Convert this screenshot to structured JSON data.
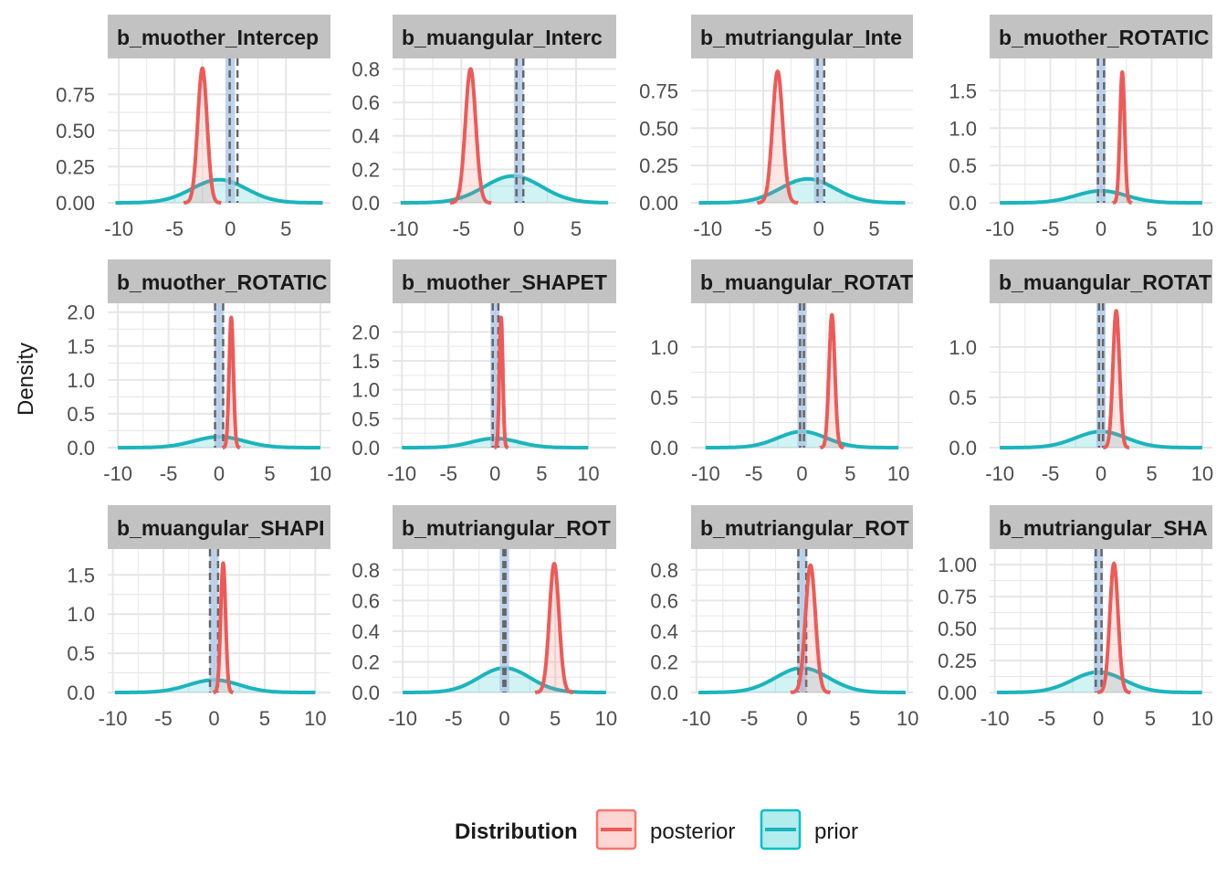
{
  "chart_data": {
    "type": "area",
    "ylabel": "Density",
    "legend": {
      "title": "Distribution",
      "position": "bottom",
      "entries": [
        {
          "name": "posterior",
          "color": "#F8766D"
        },
        {
          "name": "prior",
          "color": "#00BFC4"
        }
      ]
    },
    "colors": {
      "posterior_line": "#ED5A57",
      "posterior_fill": "#F8766D",
      "prior_line": "#1DB4BC",
      "prior_fill": "#00BFC4",
      "rope_fill": "#A9C4E6",
      "dashed_line": "#666666",
      "strip_bg": "#C2C2C2",
      "grid": "#E6E6E6"
    },
    "grid": true,
    "panels": [
      {
        "title": "b_muother_Intercep",
        "xlim": [
          -11,
          9
        ],
        "ylim": [
          0,
          0.96
        ],
        "xticks": [
          -10,
          -5,
          0,
          5
        ],
        "yticks": [
          0,
          0.25,
          0.5,
          0.75
        ],
        "ytick_labels": [
          "0.00",
          "0.25",
          "0.50",
          "0.75"
        ],
        "posterior": {
          "mean": -2.5,
          "sd": 0.42,
          "peak": 0.93
        },
        "prior": {
          "mean": -1,
          "sd": 2.45,
          "peak": 0.16
        },
        "rope": [
          -0.1,
          0.1
        ],
        "dashed": [
          -0.05,
          0.65
        ]
      },
      {
        "title": "b_muangular_Interc",
        "xlim": [
          -11,
          8.5
        ],
        "ylim": [
          0,
          0.83
        ],
        "xticks": [
          -10,
          -5,
          0,
          5
        ],
        "yticks": [
          0,
          0.2,
          0.4,
          0.6,
          0.8
        ],
        "ytick_labels": [
          "0.0",
          "0.2",
          "0.4",
          "0.6",
          "0.8"
        ],
        "posterior": {
          "mean": -4.2,
          "sd": 0.45,
          "peak": 0.8
        },
        "prior": {
          "mean": -0.5,
          "sd": 2.5,
          "peak": 0.16
        },
        "rope": [
          -0.1,
          0.1
        ],
        "dashed": [
          -0.2,
          0.4
        ]
      },
      {
        "title": "b_mutriangular_Inte",
        "xlim": [
          -11.5,
          8.5
        ],
        "ylim": [
          0,
          0.93
        ],
        "xticks": [
          -10,
          -5,
          0,
          5
        ],
        "yticks": [
          0,
          0.25,
          0.5,
          0.75
        ],
        "ytick_labels": [
          "0.00",
          "0.25",
          "0.50",
          "0.75"
        ],
        "posterior": {
          "mean": -3.7,
          "sd": 0.46,
          "peak": 0.88
        },
        "prior": {
          "mean": -1,
          "sd": 2.45,
          "peak": 0.16
        },
        "rope": [
          -0.1,
          0.1
        ],
        "dashed": [
          -0.1,
          0.5
        ]
      },
      {
        "title": "b_muother_ROTATIC",
        "xlim": [
          -11,
          11
        ],
        "ylim": [
          0,
          1.86
        ],
        "xticks": [
          -10,
          -5,
          0,
          5,
          10
        ],
        "yticks": [
          0,
          0.5,
          1.0,
          1.5
        ],
        "ytick_labels": [
          "0.0",
          "0.5",
          "1.0",
          "1.5"
        ],
        "posterior": {
          "mean": 2.1,
          "sd": 0.23,
          "peak": 1.75
        },
        "prior": {
          "mean": 0,
          "sd": 2.5,
          "peak": 0.16
        },
        "rope": [
          -0.1,
          0.1
        ],
        "dashed": [
          -0.3,
          0.3
        ]
      },
      {
        "title": "b_muother_ROTATIC",
        "xlim": [
          -11,
          11
        ],
        "ylim": [
          0,
          2.05
        ],
        "xticks": [
          -10,
          -5,
          0,
          5,
          10
        ],
        "yticks": [
          0,
          0.5,
          1.0,
          1.5,
          2.0
        ],
        "ytick_labels": [
          "0.0",
          "0.5",
          "1.0",
          "1.5",
          "2.0"
        ],
        "posterior": {
          "mean": 1.2,
          "sd": 0.21,
          "peak": 1.92
        },
        "prior": {
          "mean": 0,
          "sd": 2.5,
          "peak": 0.16
        },
        "rope": [
          -0.1,
          0.1
        ],
        "dashed": [
          -0.4,
          0.4
        ]
      },
      {
        "title": "b_muother_SHAPET",
        "xlim": [
          -11,
          13
        ],
        "ylim": [
          0,
          2.4
        ],
        "xticks": [
          -10,
          -5,
          0,
          5,
          10
        ],
        "yticks": [
          0,
          0.5,
          1.0,
          1.5,
          2.0
        ],
        "ytick_labels": [
          "0.0",
          "0.5",
          "1.0",
          "1.5",
          "2.0"
        ],
        "posterior": {
          "mean": 0.65,
          "sd": 0.18,
          "peak": 2.25
        },
        "prior": {
          "mean": 0,
          "sd": 2.5,
          "peak": 0.16
        },
        "rope": [
          -0.1,
          0.1
        ],
        "dashed": [
          -0.25,
          0.35
        ]
      },
      {
        "title": "b_muangular_ROTAT",
        "xlim": [
          -11.5,
          11.5
        ],
        "ylim": [
          0,
          1.38
        ],
        "xticks": [
          -10,
          -5,
          0,
          5,
          10
        ],
        "yticks": [
          0,
          0.5,
          1.0
        ],
        "ytick_labels": [
          "0.0",
          "0.5",
          "1.0"
        ],
        "posterior": {
          "mean": 3.1,
          "sd": 0.3,
          "peak": 1.32
        },
        "prior": {
          "mean": 0,
          "sd": 2.5,
          "peak": 0.16
        },
        "rope": [
          -0.1,
          0.1
        ],
        "dashed": [
          -0.2,
          0.2
        ]
      },
      {
        "title": "b_muangular_ROTAT",
        "xlim": [
          -11,
          11
        ],
        "ylim": [
          0,
          1.38
        ],
        "xticks": [
          -10,
          -5,
          0,
          5,
          10
        ],
        "yticks": [
          0,
          0.5,
          1.0
        ],
        "ytick_labels": [
          "0.0",
          "0.5",
          "1.0"
        ],
        "posterior": {
          "mean": 1.5,
          "sd": 0.32,
          "peak": 1.36
        },
        "prior": {
          "mean": 0,
          "sd": 2.5,
          "peak": 0.16
        },
        "rope": [
          -0.1,
          0.1
        ],
        "dashed": [
          -0.2,
          0.2
        ]
      },
      {
        "title": "b_muangular_SHAPI",
        "xlim": [
          -10.5,
          11.5
        ],
        "ylim": [
          0,
          1.76
        ],
        "xticks": [
          -10,
          -5,
          0,
          5,
          10
        ],
        "yticks": [
          0,
          0.5,
          1.0,
          1.5
        ],
        "ytick_labels": [
          "0.0",
          "0.5",
          "1.0",
          "1.5"
        ],
        "posterior": {
          "mean": 0.9,
          "sd": 0.24,
          "peak": 1.65
        },
        "prior": {
          "mean": 0,
          "sd": 2.5,
          "peak": 0.16
        },
        "rope": [
          -0.1,
          0.1
        ],
        "dashed": [
          -0.4,
          0.4
        ]
      },
      {
        "title": "b_mutriangular_ROT",
        "xlim": [
          -11,
          11
        ],
        "ylim": [
          0,
          0.9
        ],
        "xticks": [
          -10,
          -5,
          0,
          5,
          10
        ],
        "yticks": [
          0,
          0.2,
          0.4,
          0.6,
          0.8
        ],
        "ytick_labels": [
          "0.0",
          "0.2",
          "0.4",
          "0.6",
          "0.8"
        ],
        "posterior": {
          "mean": 4.9,
          "sd": 0.47,
          "peak": 0.84
        },
        "prior": {
          "mean": 0,
          "sd": 2.5,
          "peak": 0.16
        },
        "rope": [
          -0.1,
          0.1
        ],
        "dashed": [
          -0.1,
          0.1
        ]
      },
      {
        "title": "b_mutriangular_ROT",
        "xlim": [
          -10.5,
          10.5
        ],
        "ylim": [
          0,
          0.9
        ],
        "xticks": [
          -10,
          -5,
          0,
          5,
          10
        ],
        "yticks": [
          0,
          0.2,
          0.4,
          0.6,
          0.8
        ],
        "ytick_labels": [
          "0.0",
          "0.2",
          "0.4",
          "0.6",
          "0.8"
        ],
        "posterior": {
          "mean": 0.8,
          "sd": 0.47,
          "peak": 0.83
        },
        "prior": {
          "mean": 0,
          "sd": 2.5,
          "peak": 0.16
        },
        "rope": [
          -0.1,
          0.1
        ],
        "dashed": [
          -0.35,
          0.4
        ]
      },
      {
        "title": "b_mutriangular_SHA",
        "xlim": [
          -10.5,
          11
        ],
        "ylim": [
          0,
          1.08
        ],
        "xticks": [
          -10,
          -5,
          0,
          5,
          10
        ],
        "yticks": [
          0,
          0.25,
          0.5,
          0.75,
          1.0
        ],
        "ytick_labels": [
          "0.00",
          "0.25",
          "0.50",
          "0.75",
          "1.00"
        ],
        "posterior": {
          "mean": 1.5,
          "sd": 0.4,
          "peak": 1.01
        },
        "prior": {
          "mean": 0,
          "sd": 2.5,
          "peak": 0.16
        },
        "rope": [
          -0.1,
          0.1
        ],
        "dashed": [
          -0.25,
          0.3
        ]
      }
    ]
  }
}
